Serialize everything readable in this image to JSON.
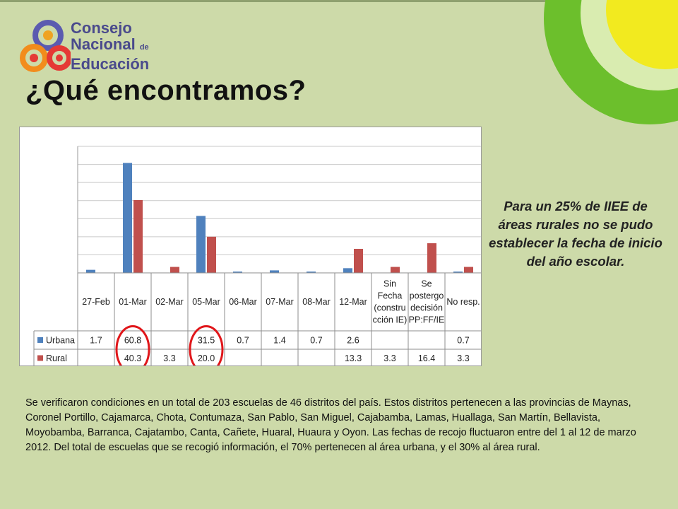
{
  "logo": {
    "line1": "Consejo",
    "line2": "Nacional",
    "line2_small": "de",
    "line3": "Educación"
  },
  "title": "¿Qué encontramos?",
  "side_note": "Para un 25% de IIEE de áreas rurales no se pudo establecer la fecha de inicio del año escolar.",
  "body_text": "Se verificaron condiciones en un total de 203 escuelas de 46 distritos del país. Estos distritos pertenecen a las provincias de Maynas, Coronel Portillo, Cajamarca, Chota, Contumaza, San Pablo, San Miguel, Cajabamba, Lamas, Huallaga, San Martín, Bellavista, Moyobamba, Barranca, Cajatambo, Canta, Cañete, Huaral, Huaura y Oyon. Las fechas de recojo fluctuaron entre del 1 al 12 de marzo 2012. Del total de escuelas que se recogió información, el 70% pertenecen al área urbana, y el 30% al área rural.",
  "colors": {
    "background": "#cddaa9",
    "urbana": "#4f81bd",
    "rural": "#c0504d",
    "highlight_circle": "#e0161a",
    "deco_green": "#6cbf2c",
    "deco_yellow": "#f2ea1f"
  },
  "chart_data": {
    "type": "bar",
    "categories": [
      [
        "27-Feb"
      ],
      [
        "01-Mar"
      ],
      [
        "02-Mar"
      ],
      [
        "05-Mar"
      ],
      [
        "06-Mar"
      ],
      [
        "07-Mar"
      ],
      [
        "08-Mar"
      ],
      [
        "12-Mar"
      ],
      [
        "Sin",
        "Fecha",
        "(constru",
        "cción IE)"
      ],
      [
        "Se",
        "postergo",
        "decisión",
        "PP:FF/IE"
      ],
      [
        "No resp."
      ]
    ],
    "series": [
      {
        "name": "Urbana",
        "values": [
          1.7,
          60.8,
          null,
          31.5,
          0.7,
          1.4,
          0.7,
          2.6,
          null,
          null,
          0.7
        ],
        "labels": [
          "1.7",
          "60.8",
          "",
          "31.5",
          "0.7",
          "1.4",
          "0.7",
          "2.6",
          "",
          "",
          "0.7"
        ]
      },
      {
        "name": "Rural",
        "values": [
          null,
          40.3,
          3.3,
          20.0,
          null,
          null,
          null,
          13.3,
          3.3,
          16.4,
          3.3
        ],
        "labels": [
          "",
          "40.3",
          "3.3",
          "20.0",
          "",
          "",
          "",
          "13.3",
          "3.3",
          "16.4",
          "3.3"
        ]
      }
    ],
    "ylim": [
      0,
      70
    ],
    "grid": true,
    "legend": "data table",
    "highlighted_columns": [
      "01-Mar",
      "05-Mar"
    ]
  }
}
